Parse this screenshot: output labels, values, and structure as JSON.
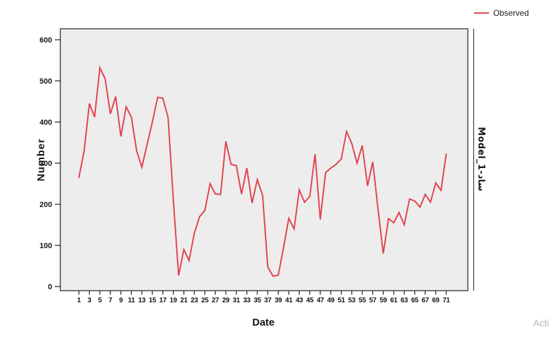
{
  "chart_data": {
    "type": "line",
    "title": "",
    "xlabel": "Date",
    "ylabel": "Number",
    "panel_label": "Model_1-ساد",
    "legend_position": "top-right",
    "grid": false,
    "plot_background": "#ededed",
    "frame_color": "#3c3c3c",
    "ylim": [
      0,
      627
    ],
    "y_ticks": [
      0,
      100,
      200,
      300,
      400,
      500,
      600
    ],
    "x_tick_labels": [
      1,
      3,
      5,
      7,
      9,
      11,
      13,
      15,
      17,
      19,
      21,
      23,
      25,
      27,
      29,
      31,
      33,
      35,
      37,
      39,
      41,
      43,
      45,
      47,
      49,
      51,
      53,
      55,
      57,
      59,
      61,
      63,
      65,
      67,
      69,
      71
    ],
    "series": [
      {
        "name": "Observed",
        "color": "#e2434f",
        "x": [
          1,
          2,
          3,
          4,
          5,
          6,
          7,
          8,
          9,
          10,
          11,
          12,
          13,
          14,
          15,
          16,
          17,
          18,
          19,
          20,
          21,
          22,
          23,
          24,
          25,
          26,
          27,
          28,
          29,
          30,
          31,
          32,
          33,
          34,
          35,
          36,
          37,
          38,
          39,
          40,
          41,
          42,
          43,
          44,
          45,
          46,
          47,
          48,
          49,
          50,
          51,
          52,
          53,
          54,
          55,
          56,
          57,
          58,
          59,
          60,
          61,
          62,
          63,
          64,
          65,
          66,
          67,
          68,
          69,
          70,
          71
        ],
        "values": [
          265,
          330,
          445,
          412,
          532,
          505,
          420,
          462,
          365,
          437,
          412,
          330,
          290,
          345,
          400,
          460,
          458,
          410,
          210,
          27,
          90,
          63,
          130,
          170,
          185,
          250,
          225,
          224,
          353,
          297,
          294,
          225,
          288,
          203,
          260,
          222,
          47,
          25,
          28,
          95,
          166,
          140,
          235,
          205,
          219,
          322,
          163,
          277,
          288,
          297,
          310,
          377,
          348,
          300,
          343,
          245,
          303,
          190,
          80,
          165,
          155,
          180,
          150,
          213,
          208,
          193,
          224,
          205,
          252,
          234,
          322
        ]
      }
    ]
  },
  "watermark": "Acti"
}
